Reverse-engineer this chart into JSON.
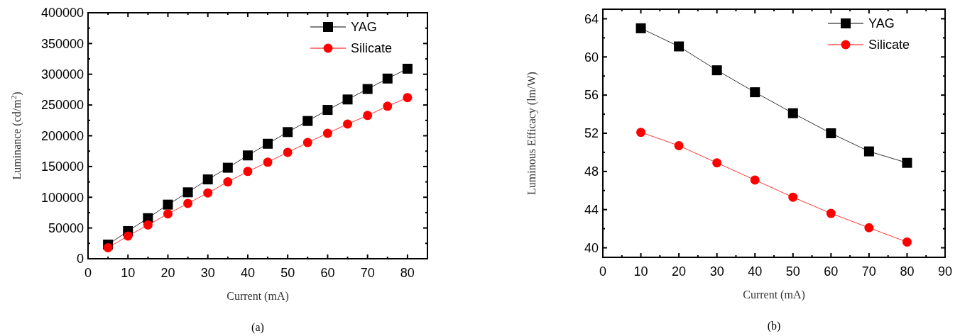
{
  "chart_data": [
    {
      "type": "line",
      "xlabel": "Current (mA)",
      "ylabel": "Luminance (cd/m$^{2}$)",
      "annotations": [
        "(a)"
      ],
      "x": [
        5,
        10,
        15,
        20,
        25,
        30,
        35,
        40,
        45,
        50,
        55,
        60,
        65,
        70,
        75,
        80
      ],
      "xlim": [
        0,
        85
      ],
      "xticks": [
        0,
        10,
        20,
        30,
        40,
        50,
        60,
        70,
        80
      ],
      "ylim": [
        0,
        400000
      ],
      "yticks": [
        0,
        50000,
        100000,
        150000,
        200000,
        250000,
        300000,
        350000,
        400000
      ],
      "legend": "top right",
      "grid": false,
      "series": [
        {
          "name": "YAG",
          "color": "#000000",
          "marker": "square",
          "values": [
            23000,
            45000,
            66000,
            88000,
            108000,
            129000,
            148000,
            168000,
            187000,
            206000,
            224000,
            242000,
            259000,
            276000,
            293000,
            309000
          ]
        },
        {
          "name": "Silicate",
          "color": "#ff0000",
          "marker": "circle",
          "values": [
            18000,
            37000,
            55000,
            73000,
            90000,
            107000,
            125000,
            142000,
            157000,
            173000,
            189000,
            204000,
            219000,
            233000,
            248000,
            262000
          ]
        }
      ]
    },
    {
      "type": "line",
      "xlabel": "Current (mA)",
      "ylabel": "Luminous Efficacy (lm/W)",
      "annotations": [
        "(b)"
      ],
      "x": [
        10,
        20,
        30,
        40,
        50,
        60,
        70,
        80
      ],
      "xlim": [
        0,
        90
      ],
      "xticks": [
        0,
        10,
        20,
        30,
        40,
        50,
        60,
        70,
        80,
        90
      ],
      "ylim": [
        39,
        65
      ],
      "yticks": [
        40,
        44,
        48,
        52,
        56,
        60,
        64
      ],
      "legend": "top right",
      "grid": false,
      "series": [
        {
          "name": "YAG",
          "color": "#000000",
          "marker": "square",
          "values": [
            63.0,
            61.1,
            58.6,
            56.3,
            54.1,
            52.0,
            50.1,
            48.9
          ]
        },
        {
          "name": "Silicate",
          "color": "#ff0000",
          "marker": "circle",
          "values": [
            52.1,
            50.7,
            48.9,
            47.1,
            45.3,
            43.6,
            42.1,
            40.6
          ]
        }
      ]
    }
  ]
}
